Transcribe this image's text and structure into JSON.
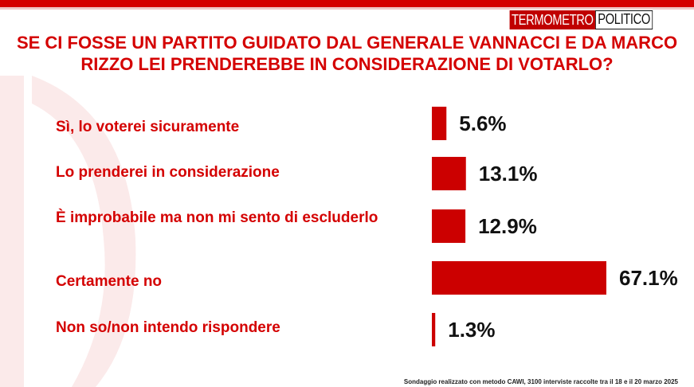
{
  "brand": {
    "part1": "TERMOMETRO",
    "part2": "POLITICO"
  },
  "footnote": "Sondaggio realizzato con metodo CAWI, 3100 interviste raccolte tra il 18 e il 20 marzo 2025",
  "colors": {
    "accent": "#d40000",
    "bar": "#cc0000",
    "text": "#111111"
  },
  "chart_data": {
    "type": "bar",
    "orientation": "horizontal",
    "title": "SE CI FOSSE UN PARTITO GUIDATO DAL GENERALE VANNACCI E DA MARCO RIZZO LEI PRENDEREBBE IN CONSIDERAZIONE DI VOTARLO?",
    "categories": [
      "Sì, lo voterei sicuramente",
      "Lo prenderei in considerazione",
      "È improbabile ma non mi sento di escluderlo",
      "Certamente no",
      "Non so/non intendo rispondere"
    ],
    "values": [
      5.6,
      13.1,
      12.9,
      67.1,
      1.3
    ],
    "value_labels": [
      "5.6%",
      "13.1%",
      "12.9%",
      "67.1%",
      "1.3%"
    ],
    "xlim": [
      0,
      67.1
    ],
    "grid": false,
    "legend": "none"
  }
}
